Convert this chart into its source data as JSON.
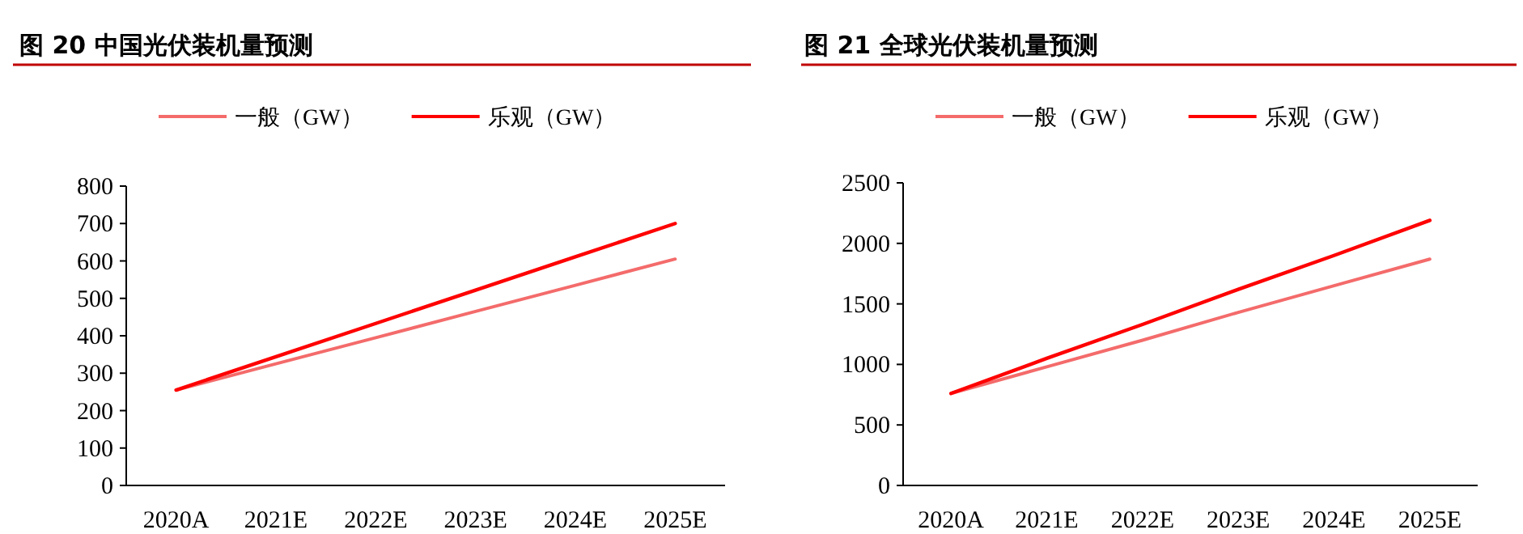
{
  "chart_data": [
    {
      "type": "line",
      "title": "图 20 中国光伏装机量预测",
      "categories": [
        "2020A",
        "2021E",
        "2022E",
        "2023E",
        "2024E",
        "2025E"
      ],
      "ylim": [
        0,
        800
      ],
      "yticks": [
        0,
        100,
        200,
        300,
        400,
        500,
        600,
        700,
        800
      ],
      "legend": "top",
      "series": [
        {
          "name": "一般（GW）",
          "color": "#f46b6b",
          "values": [
            255,
            325,
            395,
            465,
            535,
            605
          ]
        },
        {
          "name": "乐观（GW）",
          "color": "#ff0000",
          "values": [
            255,
            344,
            433,
            522,
            611,
            700
          ]
        }
      ]
    },
    {
      "type": "line",
      "title": "图 21 全球光伏装机量预测",
      "categories": [
        "2020A",
        "2021E",
        "2022E",
        "2023E",
        "2024E",
        "2025E"
      ],
      "ylim": [
        0,
        2500
      ],
      "yticks": [
        0,
        500,
        1000,
        1500,
        2000,
        2500
      ],
      "legend": "top",
      "series": [
        {
          "name": "一般（GW）",
          "color": "#f46b6b",
          "values": [
            760,
            980,
            1200,
            1430,
            1650,
            1870
          ]
        },
        {
          "name": "乐观（GW）",
          "color": "#ff0000",
          "values": [
            760,
            1050,
            1330,
            1620,
            1900,
            2190
          ]
        }
      ]
    }
  ]
}
